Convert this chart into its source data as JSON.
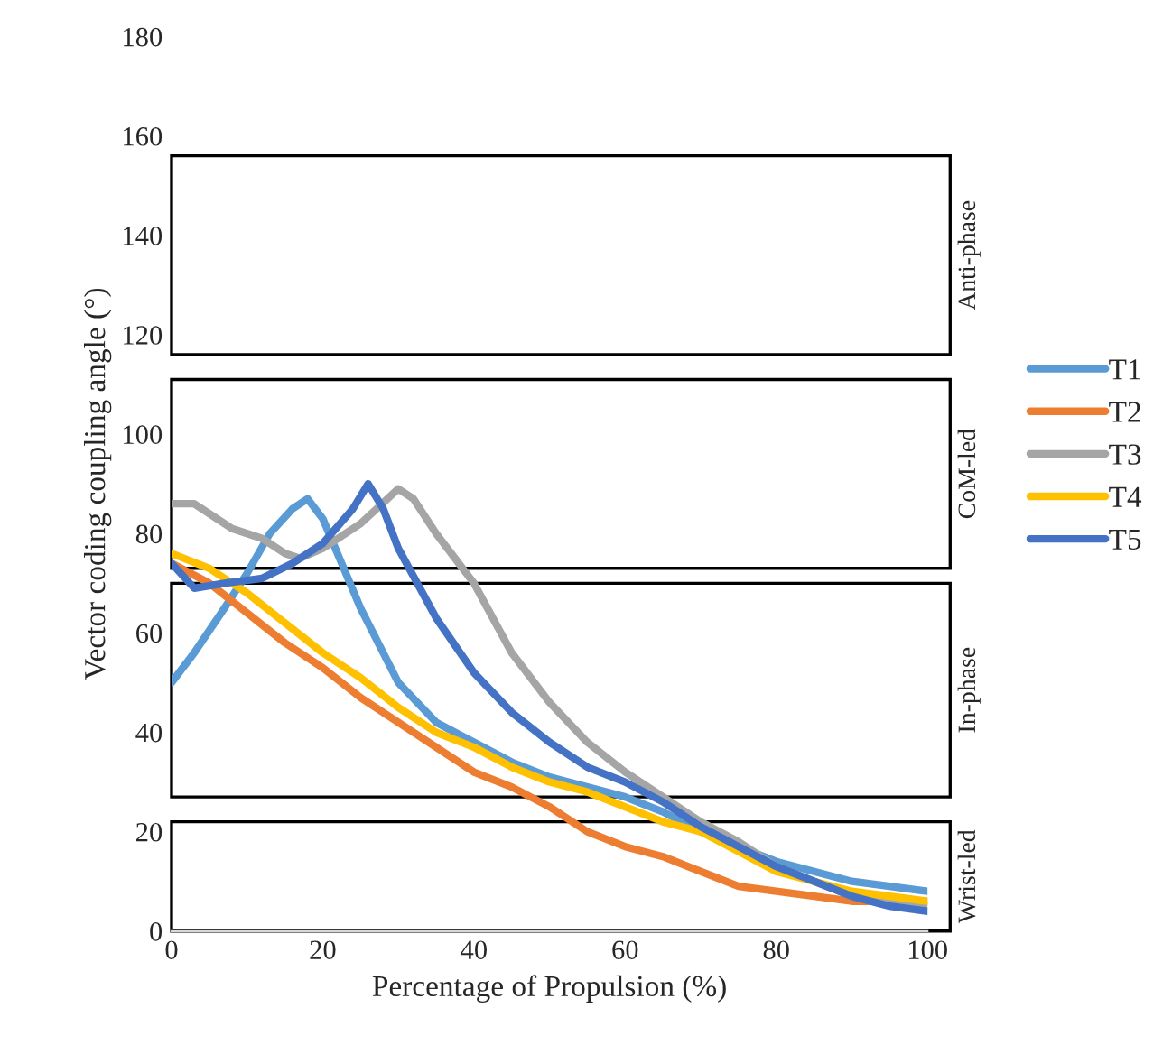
{
  "chart_data": {
    "type": "line",
    "xlabel": "Percentage of Propulsion (%)",
    "ylabel": "Vector coding coupling angle (°)",
    "xlim": [
      0,
      100
    ],
    "xticks": [
      0,
      20,
      40,
      60,
      80,
      100
    ],
    "ylim": [
      0,
      180
    ],
    "yticks": [
      0,
      20,
      40,
      60,
      80,
      100,
      120,
      140,
      160,
      180
    ],
    "grid": false,
    "legend": "right",
    "bands": [
      {
        "axis": "y",
        "from": 116,
        "to": 156,
        "label": "Anti-phase",
        "color": "#ffffff"
      },
      {
        "axis": "y",
        "from": 73,
        "to": 111,
        "label": "CoM-led",
        "color": "#ffffff"
      },
      {
        "axis": "y",
        "from": 27,
        "to": 70,
        "label": "In-phase",
        "color": "#ffffff"
      },
      {
        "axis": "y",
        "from": 0,
        "to": 22,
        "label": "Wrist-led",
        "color": "#ffffff"
      }
    ],
    "series": [
      {
        "name": "T1",
        "color": "#5b9bd5",
        "x": [
          0,
          3,
          7,
          10,
          13,
          16,
          18,
          20,
          25,
          30,
          35,
          40,
          45,
          50,
          55,
          60,
          65,
          70,
          75,
          80,
          85,
          90,
          95,
          100
        ],
        "values": [
          50,
          56,
          65,
          72,
          80,
          85,
          87,
          83,
          65,
          50,
          42,
          38,
          34,
          31,
          29,
          27,
          24,
          20,
          17,
          14,
          12,
          10,
          9,
          8
        ]
      },
      {
        "name": "T2",
        "color": "#ed7d31",
        "x": [
          0,
          5,
          10,
          15,
          20,
          25,
          30,
          35,
          40,
          45,
          50,
          55,
          60,
          65,
          70,
          75,
          80,
          85,
          90,
          95,
          100
        ],
        "values": [
          74,
          70,
          64,
          58,
          53,
          47,
          42,
          37,
          32,
          29,
          25,
          20,
          17,
          15,
          12,
          9,
          8,
          7,
          6,
          6,
          6
        ]
      },
      {
        "name": "T3",
        "color": "#a5a5a5",
        "x": [
          0,
          3,
          8,
          12,
          15,
          17,
          20,
          25,
          30,
          32,
          35,
          40,
          45,
          50,
          55,
          60,
          65,
          70,
          75,
          80,
          85,
          90,
          95,
          100
        ],
        "values": [
          86,
          86,
          81,
          79,
          76,
          75,
          77,
          82,
          89,
          87,
          80,
          70,
          56,
          46,
          38,
          32,
          27,
          22,
          18,
          13,
          10,
          7,
          6,
          5
        ]
      },
      {
        "name": "T4",
        "color": "#ffc000",
        "x": [
          0,
          5,
          10,
          15,
          20,
          25,
          30,
          35,
          40,
          45,
          50,
          55,
          60,
          65,
          70,
          75,
          80,
          85,
          90,
          95,
          100
        ],
        "values": [
          76,
          73,
          68,
          62,
          56,
          51,
          45,
          40,
          37,
          33,
          30,
          28,
          25,
          22,
          20,
          16,
          12,
          10,
          8,
          7,
          6
        ]
      },
      {
        "name": "T5",
        "color": "#4472c4",
        "x": [
          0,
          3,
          7,
          12,
          16,
          20,
          24,
          26,
          28,
          30,
          35,
          40,
          45,
          50,
          55,
          60,
          65,
          70,
          75,
          80,
          85,
          90,
          95,
          100
        ],
        "values": [
          74,
          69,
          70,
          71,
          74,
          78,
          85,
          90,
          85,
          77,
          63,
          52,
          44,
          38,
          33,
          30,
          26,
          21,
          17,
          13,
          10,
          7,
          5,
          4
        ]
      }
    ]
  }
}
